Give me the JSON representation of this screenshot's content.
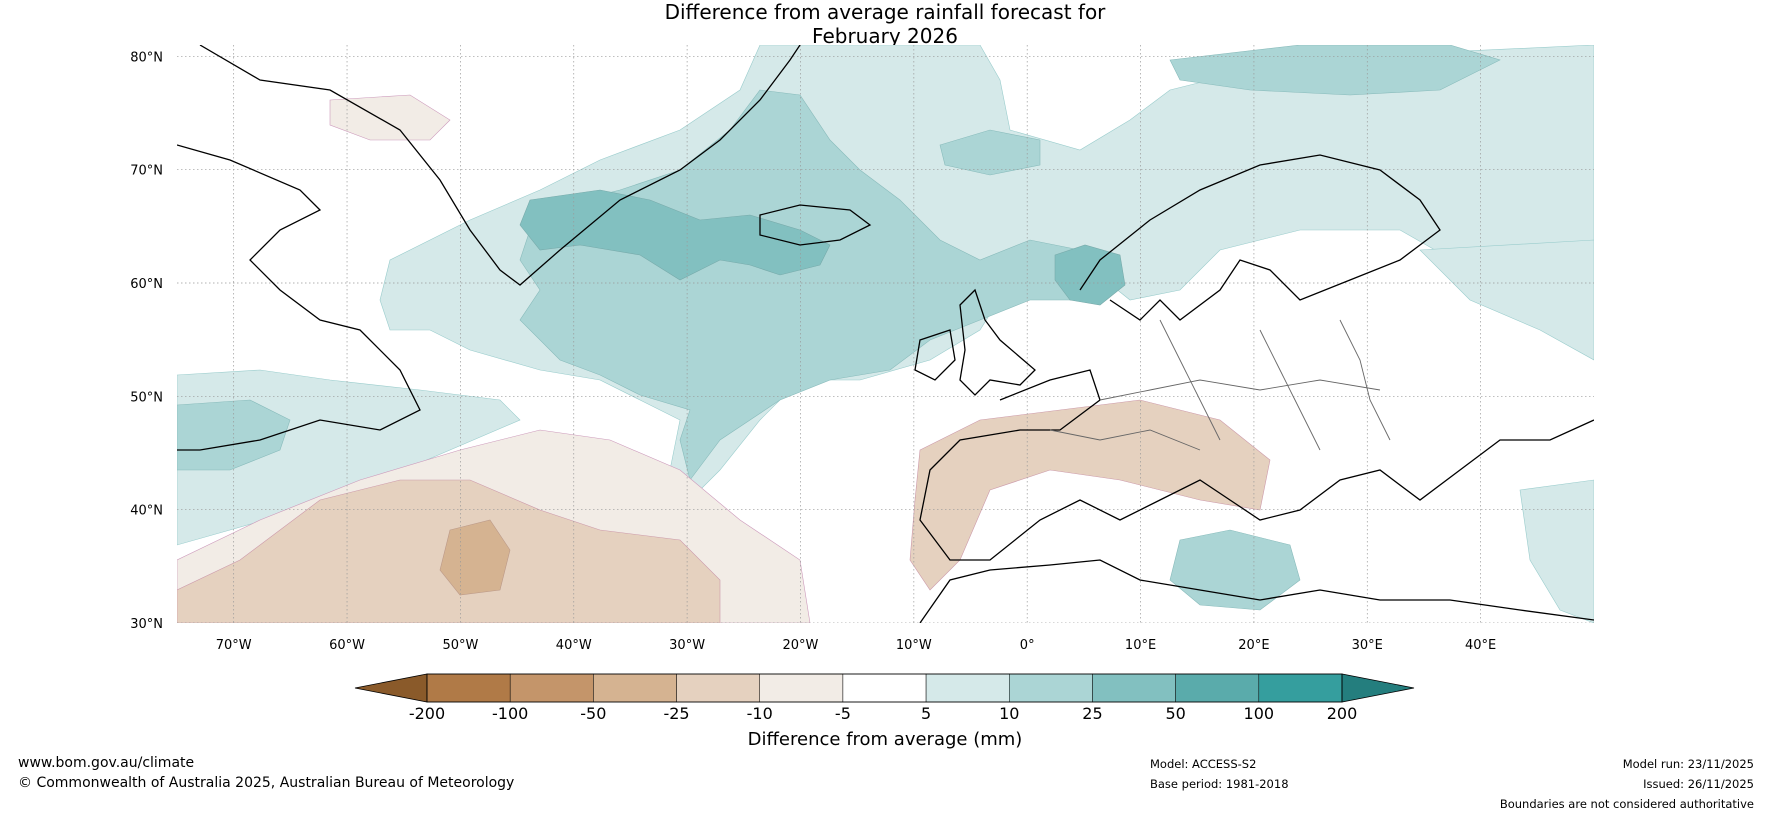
{
  "title": {
    "line1": "Difference from average rainfall forecast for",
    "line2": "February 2026"
  },
  "map": {
    "lat_labels": [
      "80°N",
      "70°N",
      "60°N",
      "50°N",
      "40°N",
      "30°N"
    ],
    "lon_labels": [
      "70°W",
      "60°W",
      "50°W",
      "40°W",
      "30°W",
      "20°W",
      "10°W",
      "0°",
      "10°E",
      "20°E",
      "30°E",
      "40°E"
    ],
    "lat_range": [
      30,
      81
    ],
    "lon_range": [
      -75,
      50
    ],
    "gridlines": true
  },
  "colorbar": {
    "title": "Difference from average (mm)",
    "ticks": [
      "-200",
      "-100",
      "-50",
      "-25",
      "-10",
      "-5",
      "5",
      "10",
      "25",
      "50",
      "100",
      "200"
    ],
    "colors": [
      "#8a5a2a",
      "#b07a47",
      "#c4956a",
      "#d5b391",
      "#e5d1bf",
      "#f2ece6",
      "#ffffff",
      "#d5e9e9",
      "#abd5d5",
      "#82c0c0",
      "#5aabab",
      "#359e9e",
      "#247e7e"
    ]
  },
  "footer": {
    "website": "www.bom.gov.au/climate",
    "copyright": "© Commonwealth of Australia 2025, Australian Bureau of Meteorology",
    "model": "Model: ACCESS-S2",
    "base_period": "Base period: 1981-2018",
    "model_run": "Model run: 23/11/2025",
    "issued": "Issued: 26/11/2025",
    "disclaimer": "Boundaries are not considered authoritative"
  }
}
